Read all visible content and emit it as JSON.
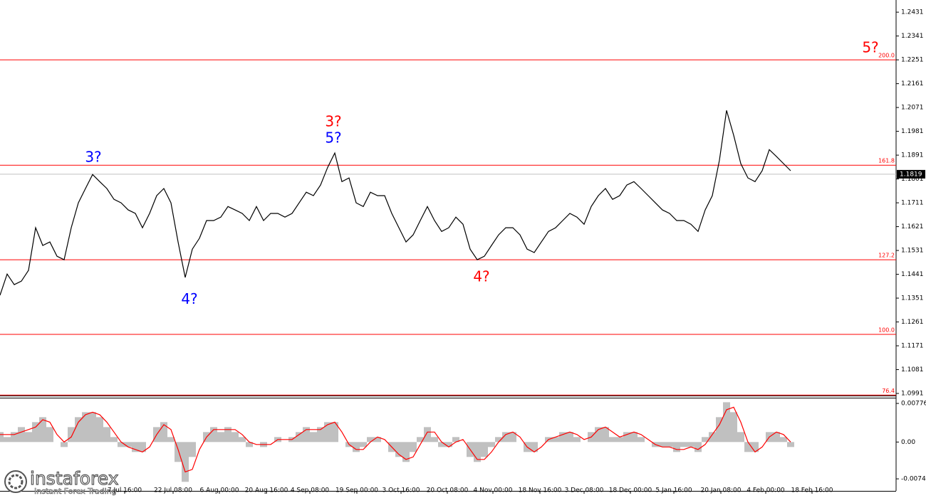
{
  "chart_data": [
    {
      "type": "line",
      "x": [
        0,
        1,
        2,
        3,
        4,
        5,
        6,
        7,
        8,
        9,
        10,
        11,
        12,
        13,
        14,
        15,
        16,
        17,
        18,
        19,
        20,
        21,
        22,
        23,
        24,
        25,
        26,
        27,
        28,
        29,
        30,
        31,
        32,
        33,
        34,
        35,
        36,
        37,
        38,
        39,
        40,
        41,
        42,
        43,
        44,
        45,
        46,
        47,
        48,
        49,
        50,
        51,
        52,
        53,
        54,
        55,
        56,
        57,
        58,
        59,
        60,
        61,
        62,
        63,
        64,
        65,
        66,
        67,
        68,
        69,
        70,
        71,
        72,
        73,
        74,
        75,
        76,
        77,
        78,
        79,
        80,
        81,
        82,
        83,
        84,
        85,
        86,
        87,
        88,
        89,
        90,
        91,
        92,
        93,
        94,
        95,
        96,
        97,
        98,
        99,
        100,
        101,
        102,
        103,
        104,
        105,
        106,
        107,
        108,
        109,
        110,
        111
      ],
      "series": [
        {
          "color": "#000000",
          "values": [
            1.1362,
            1.1442,
            1.1402,
            1.1415,
            1.1456,
            1.1617,
            1.155,
            1.1563,
            1.1509,
            1.1496,
            1.1617,
            1.1711,
            1.1765,
            1.1818,
            1.1791,
            1.1765,
            1.1724,
            1.1711,
            1.1684,
            1.1671,
            1.1617,
            1.1671,
            1.1738,
            1.1765,
            1.1711,
            1.1563,
            1.1429,
            1.1536,
            1.1577,
            1.1644,
            1.1644,
            1.1657,
            1.1697,
            1.1684,
            1.1671,
            1.1644,
            1.1697,
            1.1644,
            1.1671,
            1.1671,
            1.1657,
            1.1671,
            1.1711,
            1.1751,
            1.1738,
            1.1778,
            1.1845,
            1.1899,
            1.1791,
            1.1805,
            1.1711,
            1.1697,
            1.1751,
            1.1738,
            1.1738,
            1.1671,
            1.1617,
            1.1563,
            1.159,
            1.1644,
            1.1697,
            1.1644,
            1.1603,
            1.1617,
            1.1657,
            1.163,
            1.1536,
            1.1496,
            1.1509,
            1.155,
            1.159,
            1.1617,
            1.1617,
            1.159,
            1.1536,
            1.1523,
            1.1563,
            1.1603,
            1.1617,
            1.1644,
            1.1671,
            1.1657,
            1.163,
            1.1697,
            1.1738,
            1.1765,
            1.1724,
            1.1738,
            1.1778,
            1.1791,
            1.1765,
            1.1738,
            1.1711,
            1.1684,
            1.1671,
            1.1644,
            1.1644,
            1.163,
            1.1603,
            1.1684,
            1.1738,
            1.1872,
            1.206,
            1.1966,
            1.1859,
            1.1805,
            1.1791,
            1.1832,
            1.1912,
            1.1886,
            1.1859,
            1.1832
          ]
        }
      ],
      "xlim": [
        0,
        125.8
      ],
      "xticks": [
        {
          "value": 17.5,
          "label": "7 Jul 16:00"
        },
        {
          "value": 24.3,
          "label": "22 Jul 08:00"
        },
        {
          "value": 30.8,
          "label": "6 Aug 00:00"
        },
        {
          "value": 37.4,
          "label": "20 Aug 16:00"
        },
        {
          "value": 43.5,
          "label": "4 Sep 08:00"
        },
        {
          "value": 50.1,
          "label": "19 Sep 00:00"
        },
        {
          "value": 56.3,
          "label": "3 Oct 16:00"
        },
        {
          "value": 62.8,
          "label": "20 Oct 08:00"
        },
        {
          "value": 69.2,
          "label": "4 Nov 00:00"
        },
        {
          "value": 75.8,
          "label": "18 Nov 16:00"
        },
        {
          "value": 82.0,
          "label": "3 Dec 08:00"
        },
        {
          "value": 88.5,
          "label": "18 Dec 00:00"
        },
        {
          "value": 94.6,
          "label": "5 Jan 16:00"
        },
        {
          "value": 101.2,
          "label": "20 Jan 08:00"
        },
        {
          "value": 107.5,
          "label": "4 Feb 00:00"
        },
        {
          "value": 114.0,
          "label": "18 Feb 16:00"
        }
      ],
      "ylim": [
        1.0983,
        1.2477
      ],
      "yticks": [
        1.2431,
        1.2341,
        1.2251,
        1.2161,
        1.2071,
        1.1981,
        1.1891,
        1.1801,
        1.1711,
        1.1621,
        1.1531,
        1.1441,
        1.1351,
        1.1261,
        1.1171,
        1.1081,
        1.0991
      ],
      "levels": [
        {
          "value": 1.2251,
          "label": "200.0",
          "color": "#ff0000"
        },
        {
          "value": 1.1853,
          "label": "161.8",
          "color": "#ff0000"
        },
        {
          "value": 1.1496,
          "label": "127.2",
          "color": "#ff0000"
        },
        {
          "value": 1.1214,
          "label": "100.0",
          "color": "#ff0000"
        },
        {
          "value": 1.0985,
          "label": "76.4",
          "color": "#ff0000"
        }
      ],
      "current_price": 1.1819,
      "annotations": [
        {
          "text": "3?",
          "x": 13.1,
          "y": 1.188,
          "color": "#0000ff"
        },
        {
          "text": "4?",
          "x": 26.6,
          "y": 1.1345,
          "color": "#0000ff"
        },
        {
          "text": "5?",
          "x": 46.8,
          "y": 1.1953,
          "color": "#0000ff"
        },
        {
          "text": "3?",
          "x": 46.8,
          "y": 1.2015,
          "color": "#ff0000"
        },
        {
          "text": "4?",
          "x": 67.6,
          "y": 1.1429,
          "color": "#ff0000"
        },
        {
          "text": "5?",
          "x": 122.2,
          "y": 1.2294,
          "color": "#ff0000"
        }
      ]
    },
    {
      "type": "bar",
      "x": [
        0,
        1,
        2,
        3,
        4,
        5,
        6,
        7,
        8,
        9,
        10,
        11,
        12,
        13,
        14,
        15,
        16,
        17,
        18,
        19,
        20,
        21,
        22,
        23,
        24,
        25,
        26,
        27,
        28,
        29,
        30,
        31,
        32,
        33,
        34,
        35,
        36,
        37,
        38,
        39,
        40,
        41,
        42,
        43,
        44,
        45,
        46,
        47,
        48,
        49,
        50,
        51,
        52,
        53,
        54,
        55,
        56,
        57,
        58,
        59,
        60,
        61,
        62,
        63,
        64,
        65,
        66,
        67,
        68,
        69,
        70,
        71,
        72,
        73,
        74,
        75,
        76,
        77,
        78,
        79,
        80,
        81,
        82,
        83,
        84,
        85,
        86,
        87,
        88,
        89,
        90,
        91,
        92,
        93,
        94,
        95,
        96,
        97,
        98,
        99,
        100,
        101,
        102,
        103,
        104,
        105,
        106,
        107,
        108,
        109,
        110,
        111
      ],
      "series": [
        {
          "color": "#c0c0c0",
          "values": [
            0.002,
            0.001,
            0.002,
            0.003,
            0.002,
            0.004,
            0.005,
            0.003,
            0.0,
            -0.001,
            0.003,
            0.005,
            0.006,
            0.006,
            0.005,
            0.003,
            0.001,
            -0.001,
            -0.001,
            -0.002,
            -0.002,
            0.0,
            0.003,
            0.004,
            0.001,
            -0.004,
            -0.008,
            -0.003,
            0.0,
            0.002,
            0.003,
            0.002,
            0.003,
            0.002,
            0.001,
            -0.001,
            0.0,
            -0.001,
            0.0,
            0.001,
            0.0,
            0.001,
            0.002,
            0.003,
            0.002,
            0.003,
            0.004,
            0.004,
            0.0,
            -0.001,
            -0.002,
            -0.001,
            0.001,
            0.001,
            0.0,
            -0.002,
            -0.003,
            -0.004,
            -0.002,
            0.001,
            0.003,
            0.001,
            -0.001,
            -0.001,
            0.001,
            0.0,
            -0.003,
            -0.004,
            -0.003,
            -0.001,
            0.001,
            0.002,
            0.002,
            0.0,
            -0.002,
            -0.002,
            0.0,
            0.001,
            0.001,
            0.002,
            0.002,
            0.001,
            0.0,
            0.002,
            0.003,
            0.003,
            0.001,
            0.001,
            0.002,
            0.002,
            0.001,
            0.0,
            -0.001,
            -0.001,
            -0.001,
            -0.002,
            -0.001,
            -0.001,
            -0.002,
            0.001,
            0.002,
            0.005,
            0.008,
            0.006,
            0.002,
            -0.002,
            -0.002,
            0.0,
            0.002,
            0.002,
            0.001,
            -0.001
          ]
        },
        {
          "color": "#ff0000",
          "kind": "line",
          "values": [
            0.0015,
            0.0015,
            0.0015,
            0.002,
            0.0025,
            0.003,
            0.0045,
            0.004,
            0.0015,
            0.0,
            0.001,
            0.004,
            0.0055,
            0.006,
            0.0055,
            0.004,
            0.002,
            0.0,
            -0.001,
            -0.0015,
            -0.002,
            -0.001,
            0.0015,
            0.0035,
            0.0025,
            -0.0015,
            -0.006,
            -0.0055,
            -0.0015,
            0.001,
            0.0025,
            0.0025,
            0.0025,
            0.0025,
            0.0015,
            0.0,
            -0.0005,
            -0.0005,
            -0.0005,
            0.0005,
            0.0005,
            0.0005,
            0.0015,
            0.0025,
            0.0025,
            0.0025,
            0.0035,
            0.004,
            0.002,
            -0.0005,
            -0.0015,
            -0.0015,
            0.0,
            0.001,
            0.0005,
            -0.001,
            -0.0025,
            -0.0035,
            -0.003,
            -0.0005,
            0.002,
            0.002,
            0.0,
            -0.001,
            0.0,
            0.0005,
            -0.0015,
            -0.0035,
            -0.0035,
            -0.002,
            0.0,
            0.0015,
            0.002,
            0.001,
            -0.001,
            -0.002,
            -0.001,
            0.0005,
            0.001,
            0.0015,
            0.002,
            0.0015,
            0.0005,
            0.001,
            0.0025,
            0.003,
            0.002,
            0.001,
            0.0015,
            0.002,
            0.0015,
            0.0005,
            -0.0005,
            -0.001,
            -0.001,
            -0.0015,
            -0.0015,
            -0.001,
            -0.0015,
            -0.0005,
            0.0015,
            0.0035,
            0.0065,
            0.007,
            0.004,
            0.0,
            -0.002,
            -0.001,
            0.001,
            0.002,
            0.0015,
            0.0
          ]
        }
      ],
      "xlim": [
        0,
        125.8
      ],
      "ylim": [
        -0.00982,
        0.00877
      ],
      "yticks": [
        0.00776,
        {
          "value": 0,
          "label": "0.00"
        },
        -0.0074
      ]
    }
  ],
  "watermark": {
    "brand": "instaforex",
    "tagline": "Instant Forex Trading"
  }
}
